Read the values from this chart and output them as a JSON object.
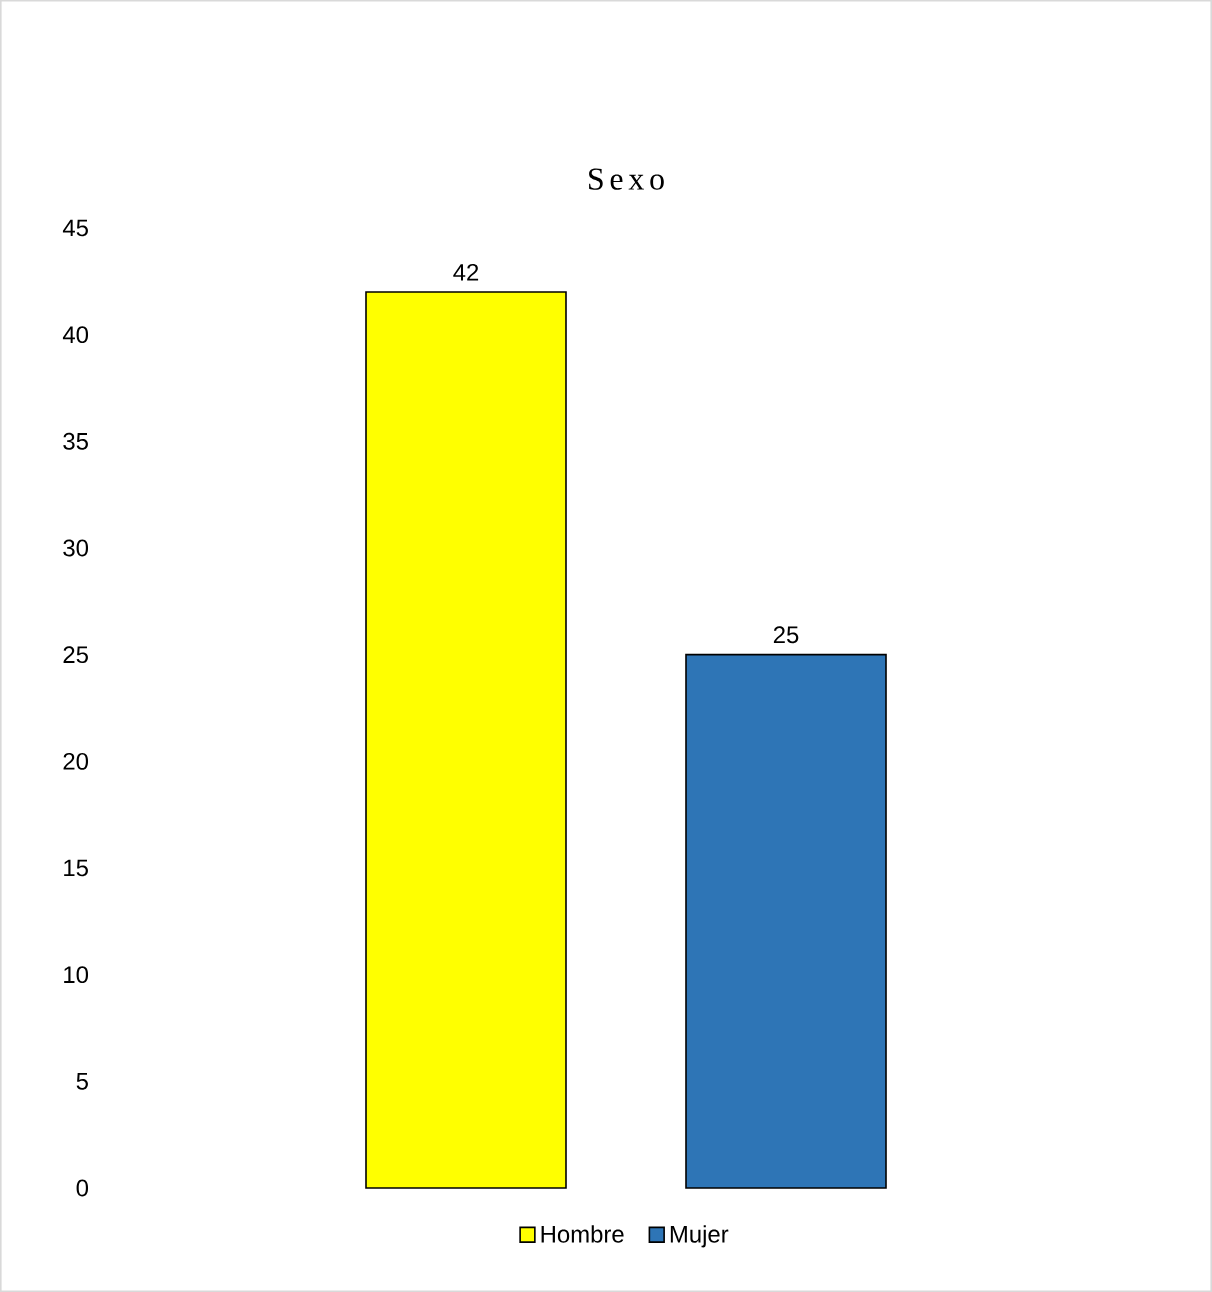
{
  "chart_data": {
    "type": "bar",
    "title": "Sexo",
    "categories": [
      null
    ],
    "series": [
      {
        "name": "Hombre",
        "color": "#ffff00",
        "values": [
          42
        ]
      },
      {
        "name": "Mujer",
        "color": "#2e75b6",
        "values": [
          25
        ]
      }
    ],
    "ylim": [
      0,
      45
    ],
    "yticks": [
      0,
      5,
      10,
      15,
      20,
      25,
      30,
      35,
      40,
      45
    ],
    "grid": false,
    "legend": "bottom",
    "data_labels": true
  }
}
